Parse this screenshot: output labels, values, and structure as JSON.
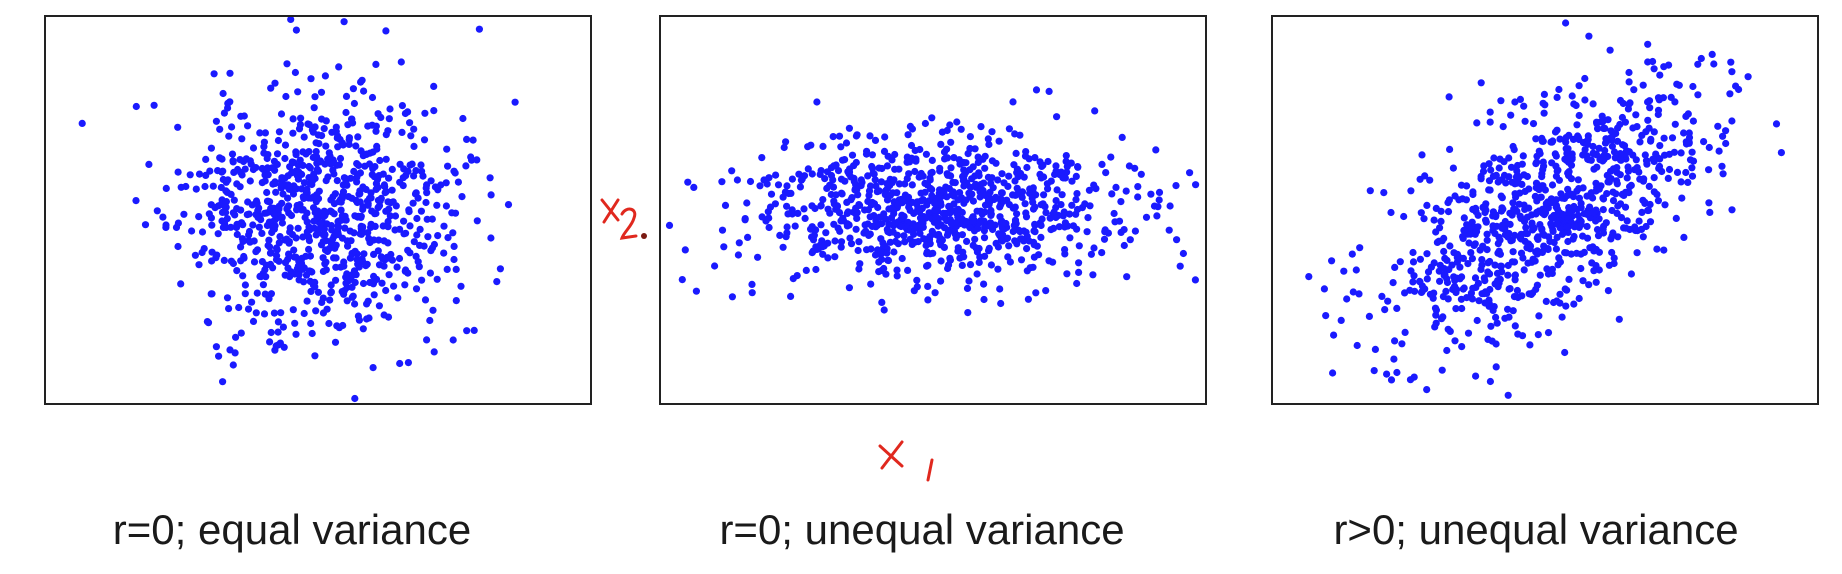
{
  "colors": {
    "points": "#1a1aff",
    "frame": "#222222",
    "annotation": "#e0281e"
  },
  "annotations": {
    "y_axis": "x2",
    "x_axis": "x1"
  },
  "chart_data": [
    {
      "type": "scatter",
      "title": "r=0; equal variance",
      "xlabel": "",
      "ylabel": "",
      "xlim": [
        -4,
        4
      ],
      "ylim": [
        -3.2,
        3.2
      ],
      "grid": false,
      "points_count": 900,
      "mean": [
        0,
        0
      ],
      "std": [
        1.0,
        1.0
      ],
      "correlation": 0,
      "seed": 11
    },
    {
      "type": "scatter",
      "title": "r=0; unequal variance",
      "xlabel": "",
      "ylabel": "",
      "xlim": [
        -4,
        4
      ],
      "ylim": [
        -3.2,
        3.2
      ],
      "grid": false,
      "points_count": 900,
      "mean": [
        0,
        0
      ],
      "std": [
        1.35,
        0.6
      ],
      "correlation": 0,
      "seed": 23
    },
    {
      "type": "scatter",
      "title": "r>0; unequal variance",
      "xlabel": "",
      "ylabel": "",
      "xlim": [
        -4,
        4
      ],
      "ylim": [
        -3.2,
        3.2
      ],
      "grid": false,
      "points_count": 900,
      "mean": [
        0,
        0
      ],
      "std": [
        1.2,
        1.1
      ],
      "correlation": 0.62,
      "seed": 37
    }
  ]
}
